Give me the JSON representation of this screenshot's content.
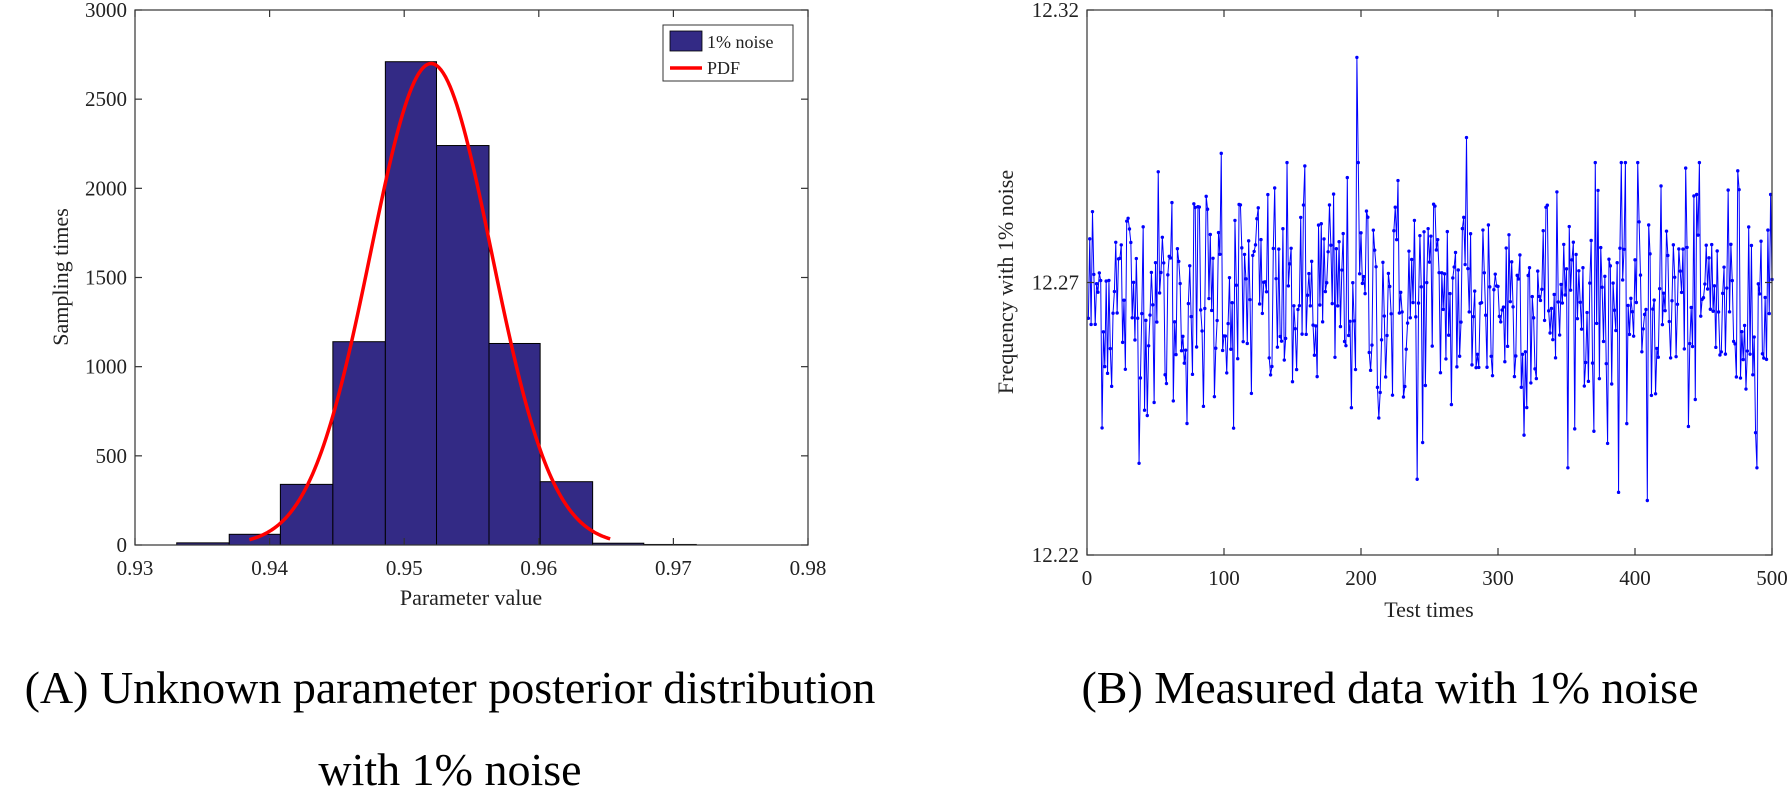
{
  "chart_data": [
    {
      "type": "bar",
      "subtype": "histogram",
      "xlabel": "Parameter value",
      "ylabel": "Sampling times",
      "xlim": [
        0.93,
        0.98
      ],
      "ylim": [
        0,
        3000
      ],
      "xticks": [
        "0.93",
        "0.94",
        "0.95",
        "0.96",
        "0.97",
        "0.98"
      ],
      "yticks": [
        "0",
        "500",
        "1000",
        "1500",
        "2000",
        "2500",
        "3000"
      ],
      "bin_edges": [
        0.9331,
        0.937,
        0.9408,
        0.9447,
        0.9486,
        0.9524,
        0.9563,
        0.9601,
        0.964,
        0.9678,
        0.9717
      ],
      "counts": [
        12,
        60,
        340,
        1140,
        2710,
        2240,
        1130,
        355,
        10,
        3
      ],
      "bar_color": "#332a85",
      "series": [
        {
          "name": "1% noise",
          "kind": "histogram",
          "color": "#332a85"
        },
        {
          "name": "PDF",
          "kind": "line",
          "color": "#ff0000",
          "mean": 0.952,
          "std": 0.0045,
          "peak": 2700,
          "x_range": [
            0.9385,
            0.9653
          ]
        }
      ],
      "legend": [
        "1% noise",
        "PDF"
      ],
      "legend_position": "top-right",
      "grid": false
    },
    {
      "type": "line",
      "xlabel": "Test times",
      "ylabel": "Frequency with 1% noise",
      "xlim": [
        0,
        500
      ],
      "ylim": [
        12.22,
        12.32
      ],
      "xticks": [
        "0",
        "100",
        "200",
        "300",
        "400",
        "500"
      ],
      "yticks": [
        "12.22",
        "12.27",
        "12.32"
      ],
      "series": [
        {
          "name": "",
          "color": "#0000ff",
          "markers": true,
          "n_points": 500,
          "mean": 12.267,
          "std": 0.0115,
          "x_start": 1,
          "x_step": 1,
          "highlights": [
            {
              "x": 197,
              "y": 12.3113
            },
            {
              "x": 277,
              "y": 12.2966
            },
            {
              "x": 98,
              "y": 12.2937
            },
            {
              "x": 388,
              "y": 12.2315
            },
            {
              "x": 409,
              "y": 12.23
            },
            {
              "x": 241,
              "y": 12.2339
            }
          ]
        }
      ],
      "grid": false
    }
  ],
  "captions": {
    "a_line1": "(A) Unknown parameter posterior distribution",
    "a_line2": "with 1% noise",
    "b": "(B) Measured data with 1% noise"
  }
}
